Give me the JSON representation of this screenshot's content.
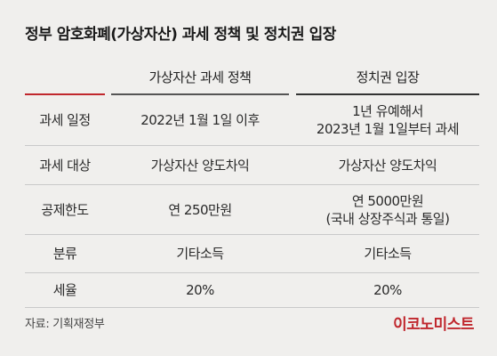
{
  "title": "정부 암호화폐(가상자산) 과세 정책 및 정치권 입장",
  "columns": [
    "가상자산 과세 정책",
    "정치권 입장"
  ],
  "rows": [
    {
      "label": "과세 일정",
      "gov": "2022년 1월 1일 이후",
      "pol": [
        "1년 유예해서",
        "2023년 1월 1일부터 과세"
      ]
    },
    {
      "label": "과세 대상",
      "gov": "가상자산 양도차익",
      "pol": [
        "가상자산 양도차익"
      ]
    },
    {
      "label": "공제한도",
      "gov": "연 250만원",
      "pol": [
        "연 5000만원",
        "(국내 상장주식과 통일)"
      ]
    },
    {
      "label": "분류",
      "gov": "기타소득",
      "pol": [
        "기타소득"
      ]
    },
    {
      "label": "세율",
      "gov": "20%",
      "pol": [
        "20%"
      ]
    }
  ],
  "source": "자료: 기획재정부",
  "logo": "이코노미스트",
  "colors": {
    "accent": "#c0272d",
    "background": "#f0efed"
  }
}
